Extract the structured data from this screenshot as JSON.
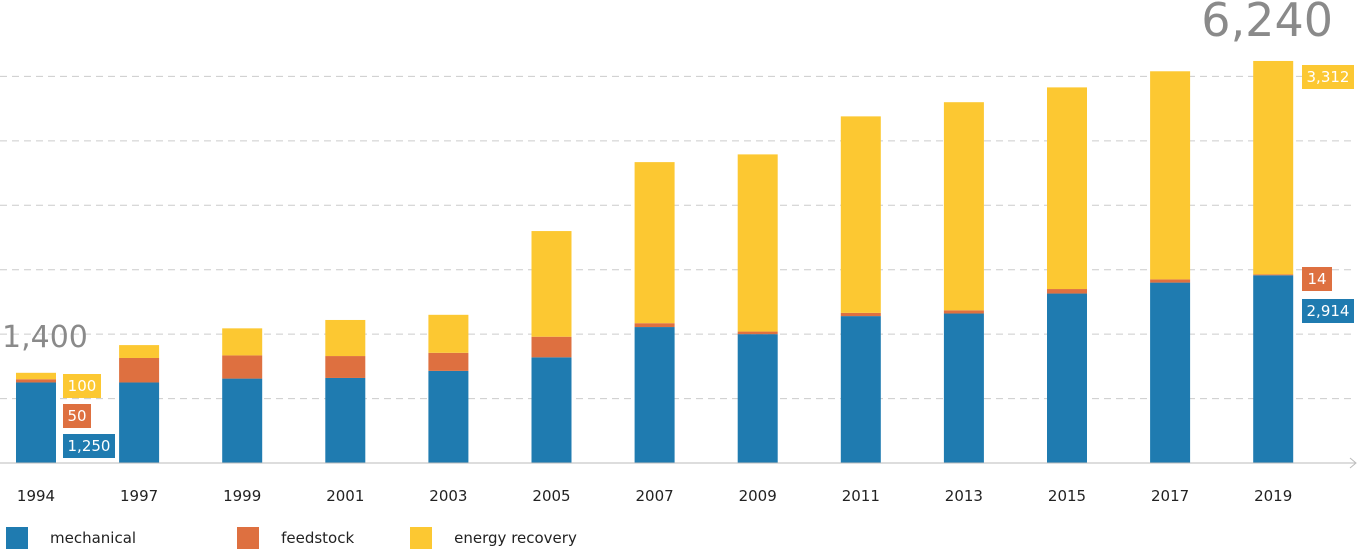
{
  "colors": {
    "mechanical": "#1f7bb0",
    "feedstock": "#de7040",
    "energy_recovery": "#fcc832",
    "grid": "#cccccc",
    "axis": "#bbbbbb",
    "total_text": "#8a8a8a"
  },
  "chart_data": {
    "type": "bar",
    "stacked": true,
    "categories": [
      "1994",
      "1997",
      "1999",
      "2001",
      "2003",
      "2005",
      "2007",
      "2009",
      "2011",
      "2013",
      "2015",
      "2017",
      "2019"
    ],
    "series": [
      {
        "name": "mechanical",
        "values": [
          1250,
          1250,
          1310,
          1320,
          1430,
          1640,
          2110,
          2000,
          2280,
          2320,
          2630,
          2800,
          2914
        ]
      },
      {
        "name": "feedstock",
        "values": [
          50,
          380,
          360,
          340,
          280,
          320,
          60,
          40,
          50,
          50,
          70,
          50,
          14
        ]
      },
      {
        "name": "energy recovery",
        "values": [
          100,
          200,
          420,
          560,
          590,
          1640,
          2500,
          2750,
          3050,
          3230,
          3130,
          3230,
          3312
        ]
      }
    ],
    "ylim": [
      0,
      7000
    ],
    "grid": true,
    "totals": {
      "first": "1,400",
      "last": "6,240"
    },
    "data_labels": {
      "first": {
        "energy_recovery": "100",
        "feedstock": "50",
        "mechanical": "1,250"
      },
      "last": {
        "energy_recovery": "3,312",
        "feedstock": "14",
        "mechanical": "2,914"
      }
    }
  },
  "legend": [
    {
      "label": "mechanical",
      "color": "#1f7bb0"
    },
    {
      "label": "feedstock",
      "color": "#de7040"
    },
    {
      "label": "energy recovery",
      "color": "#fcc832"
    }
  ]
}
